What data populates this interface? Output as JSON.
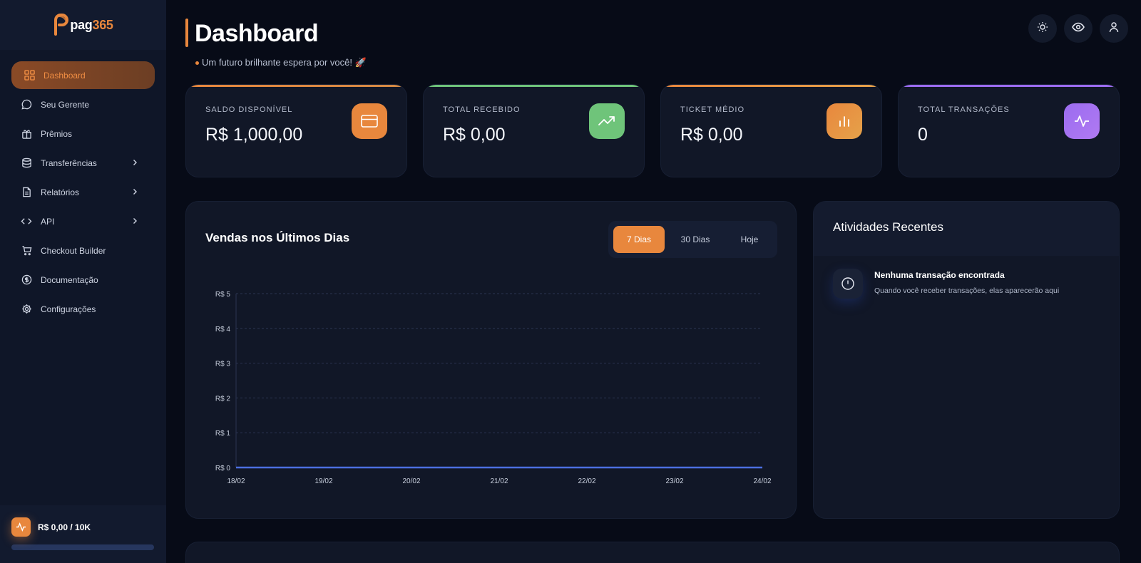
{
  "brand": {
    "name_prefix": "pag",
    "name_suffix": "365"
  },
  "sidebar": {
    "items": [
      {
        "label": "Dashboard",
        "icon": "grid-icon",
        "active": true
      },
      {
        "label": "Seu Gerente",
        "icon": "chat-bubble-icon"
      },
      {
        "label": "Prêmios",
        "icon": "gift-icon"
      },
      {
        "label": "Transferências",
        "icon": "database-icon",
        "has_submenu": true
      },
      {
        "label": "Relatórios",
        "icon": "document-icon",
        "has_submenu": true
      },
      {
        "label": "API",
        "icon": "code-icon",
        "has_submenu": true
      },
      {
        "label": "Checkout Builder",
        "icon": "cart-icon"
      },
      {
        "label": "Documentação",
        "icon": "dollar-circle-icon"
      },
      {
        "label": "Configurações",
        "icon": "gear-icon"
      }
    ],
    "limit": {
      "text": "R$ 0,00 / 10K",
      "progress": 0
    }
  },
  "header": {
    "title": "Dashboard",
    "subtitle": "Um futuro brilhante espera por você! 🚀"
  },
  "top_actions": [
    {
      "icon": "sun-icon"
    },
    {
      "icon": "eye-icon"
    },
    {
      "icon": "user-icon"
    }
  ],
  "stats": [
    {
      "label": "SALDO DISPONÍVEL",
      "value": "R$ 1,000,00",
      "icon": "credit-card-icon",
      "color": "#e8873d"
    },
    {
      "label": "TOTAL RECEBIDO",
      "value": "R$ 0,00",
      "icon": "trending-up-icon",
      "color": "#6fc47a"
    },
    {
      "label": "TICKET MÉDIO",
      "value": "R$ 0,00",
      "icon": "bar-chart-icon",
      "color": "#e8933a"
    },
    {
      "label": "TOTAL TRANSAÇÕES",
      "value": "0",
      "icon": "activity-icon",
      "color": "#9b6cf0"
    }
  ],
  "chart_panel": {
    "title": "Vendas nos Últimos Dias",
    "ranges": [
      "7 Dias",
      "30 Dias",
      "Hoje"
    ],
    "selected_range": "7 Dias"
  },
  "chart_data": {
    "type": "line",
    "title": "",
    "xlabel": "",
    "ylabel": "",
    "categories": [
      "18/02",
      "19/02",
      "20/02",
      "21/02",
      "22/02",
      "23/02",
      "24/02"
    ],
    "series": [
      {
        "values": [
          0,
          0,
          0,
          0,
          0,
          0,
          0
        ],
        "color": "#4b6fe0"
      }
    ],
    "y_ticks": [
      "R$ 0",
      "R$ 1",
      "R$ 2",
      "R$ 3",
      "R$ 4",
      "R$ 5"
    ],
    "ylim": [
      0,
      5
    ],
    "grid": true
  },
  "activities": {
    "title": "Atividades Recentes",
    "empty_title": "Nenhuma transação encontrada",
    "empty_desc": "Quando você receber transações, elas aparecerão aqui",
    "icon": "clock-icon"
  }
}
